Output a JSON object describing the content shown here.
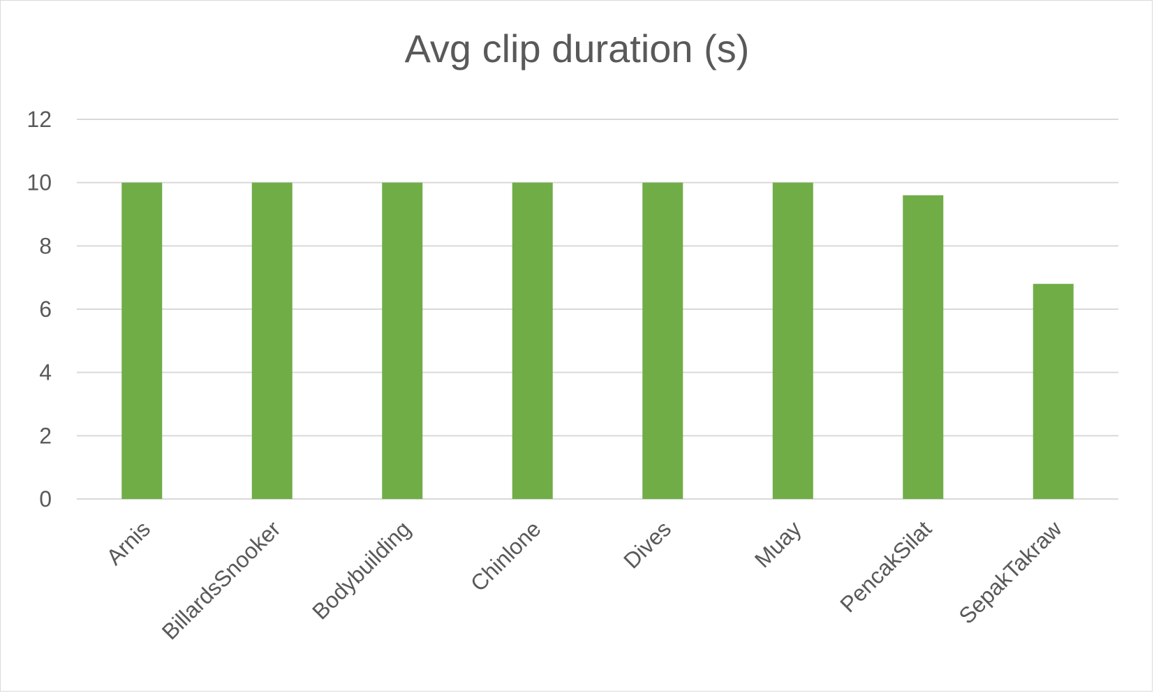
{
  "chart_data": {
    "type": "bar",
    "title": "Avg clip duration (s)",
    "xlabel": "",
    "ylabel": "",
    "categories": [
      "Arnis",
      "BillardsSnooker",
      "Bodybuilding",
      "Chinlone",
      "Dives",
      "Muay",
      "PencakSilat",
      "SepakTakraw"
    ],
    "values": [
      10,
      10,
      10,
      10,
      10,
      10,
      9.6,
      6.8
    ],
    "ylim": [
      0,
      12
    ],
    "yticks": [
      0,
      2,
      4,
      6,
      8,
      10,
      12
    ],
    "grid": true,
    "legend": "none",
    "bar_color": "#70ad47",
    "grid_color": "#d9d9d9",
    "text_color": "#595959"
  }
}
